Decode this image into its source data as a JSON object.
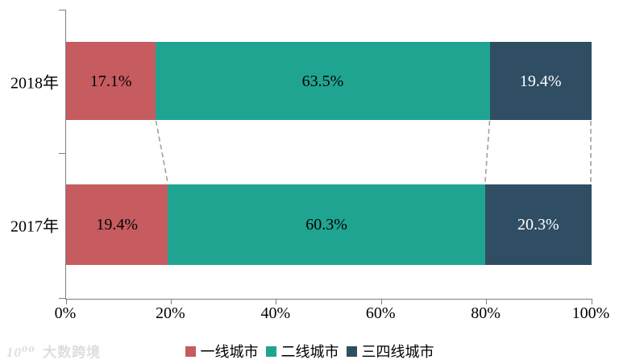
{
  "watermark": {
    "logo": "10⁰⁰",
    "text": "大数跨境"
  },
  "chart_data": {
    "type": "bar",
    "variant": "horizontal-stacked",
    "title": "",
    "xlabel": "",
    "ylabel": "",
    "xlim": [
      0,
      100
    ],
    "x_ticks": [
      "0%",
      "20%",
      "40%",
      "60%",
      "80%",
      "100%"
    ],
    "categories": [
      "2018年",
      "2017年"
    ],
    "series": [
      {
        "name": "一线城市",
        "color": "#C65B60",
        "label_color": "#000000",
        "values": [
          17.1,
          19.4
        ],
        "labels": [
          "17.1%",
          "19.4%"
        ]
      },
      {
        "name": "二线城市",
        "color": "#20A492",
        "label_color": "#000000",
        "values": [
          63.5,
          60.3
        ],
        "labels": [
          "63.5%",
          "60.3%"
        ]
      },
      {
        "name": "三四线城市",
        "color": "#2F4E63",
        "label_color": "#FFFFFF",
        "values": [
          19.4,
          20.3
        ],
        "labels": [
          "19.4%",
          "20.3%"
        ]
      }
    ],
    "legend_position": "bottom",
    "grid": false,
    "axis_color": "#7F7F7F",
    "connector_style": "dashed",
    "connector_color": "#A0A0A0"
  }
}
